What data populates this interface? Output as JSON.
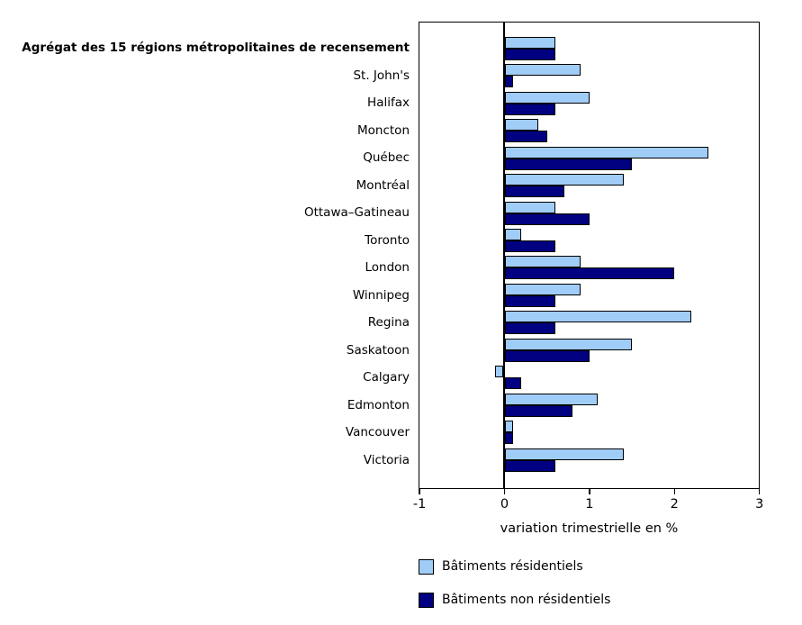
{
  "chart_data": {
    "type": "bar",
    "orientation": "horizontal",
    "title": "",
    "xlabel": "variation trimestrielle en %",
    "ylabel": "",
    "xlim": [
      -1,
      3
    ],
    "x_ticks": [
      -1,
      0,
      1,
      2,
      3
    ],
    "grid": false,
    "legend_position": "bottom-left",
    "bold_category_index": 0,
    "categories": [
      "Agrégat des 15 régions métropolitaines de recensement",
      "St. John's",
      "Halifax",
      "Moncton",
      "Québec",
      "Montréal",
      "Ottawa–Gatineau",
      "Toronto",
      "London",
      "Winnipeg",
      "Regina",
      "Saskatoon",
      "Calgary",
      "Edmonton",
      "Vancouver",
      "Victoria"
    ],
    "series": [
      {
        "name": "Bâtiments résidentiels",
        "color": "#A0CCF8",
        "values": [
          0.6,
          0.9,
          1.0,
          0.4,
          2.4,
          1.4,
          0.6,
          0.2,
          0.9,
          0.9,
          2.2,
          1.5,
          -0.1,
          1.1,
          0.1,
          1.4
        ]
      },
      {
        "name": "Bâtiments non résidentiels",
        "color": "#000080",
        "values": [
          0.6,
          0.1,
          0.6,
          0.5,
          1.5,
          0.7,
          1.0,
          0.6,
          2.0,
          0.6,
          0.6,
          1.0,
          0.2,
          0.8,
          0.1,
          0.6
        ]
      }
    ],
    "colors": {
      "bar_border": "#000000",
      "axis": "#000000",
      "text": "#000000",
      "background": "#ffffff"
    }
  }
}
